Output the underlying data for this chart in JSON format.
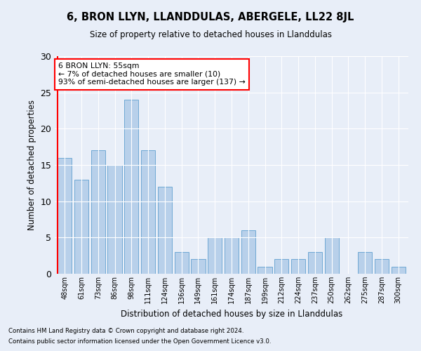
{
  "title": "6, BRON LLYN, LLANDDULAS, ABERGELE, LL22 8JL",
  "subtitle": "Size of property relative to detached houses in Llanddulas",
  "xlabel": "Distribution of detached houses by size in Llanddulas",
  "ylabel": "Number of detached properties",
  "categories": [
    "48sqm",
    "61sqm",
    "73sqm",
    "86sqm",
    "98sqm",
    "111sqm",
    "124sqm",
    "136sqm",
    "149sqm",
    "161sqm",
    "174sqm",
    "187sqm",
    "199sqm",
    "212sqm",
    "224sqm",
    "237sqm",
    "250sqm",
    "262sqm",
    "275sqm",
    "287sqm",
    "300sqm"
  ],
  "values": [
    16,
    13,
    17,
    15,
    24,
    17,
    12,
    3,
    2,
    5,
    5,
    6,
    1,
    2,
    2,
    3,
    5,
    0,
    3,
    2,
    1
  ],
  "bar_color": "#b8d0ea",
  "bar_edge_color": "#6fa8d4",
  "background_color": "#e8eef8",
  "grid_color": "#ffffff",
  "vline_color": "red",
  "annotation_text": "6 BRON LLYN: 55sqm\n← 7% of detached houses are smaller (10)\n93% of semi-detached houses are larger (137) →",
  "annotation_box_color": "white",
  "annotation_box_edge": "red",
  "ylim": [
    0,
    30
  ],
  "yticks": [
    0,
    5,
    10,
    15,
    20,
    25,
    30
  ],
  "footer1": "Contains HM Land Registry data © Crown copyright and database right 2024.",
  "footer2": "Contains public sector information licensed under the Open Government Licence v3.0."
}
